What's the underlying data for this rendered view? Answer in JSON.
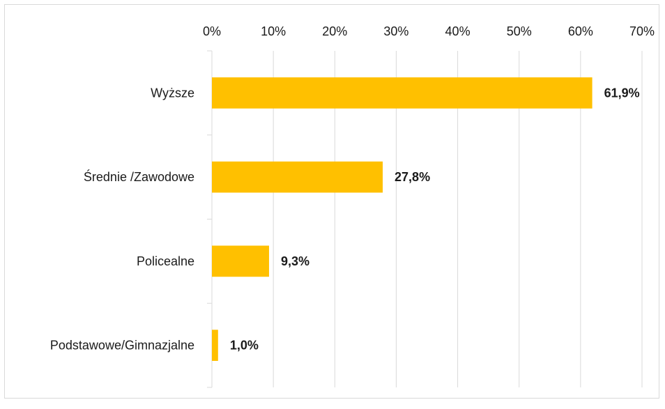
{
  "chart_data": {
    "type": "bar",
    "orientation": "horizontal",
    "categories": [
      "Wyższe",
      "Średnie /Zawodowe",
      "Policealne",
      "Podstawowe/Gimnazjalne"
    ],
    "values": [
      61.9,
      27.8,
      9.3,
      1.0
    ],
    "data_labels": [
      "61,9%",
      "27,8%",
      "9,3%",
      "1,0%"
    ],
    "x_ticks": [
      0,
      10,
      20,
      30,
      40,
      50,
      60,
      70
    ],
    "x_tick_labels": [
      "0%",
      "10%",
      "20%",
      "30%",
      "40%",
      "50%",
      "60%",
      "70%"
    ],
    "xlim": [
      0,
      70
    ],
    "x_axis_position": "top",
    "grid": true,
    "legend": "none",
    "title": "",
    "xlabel": "",
    "ylabel": "",
    "colors": {
      "bar": "#FFC000",
      "grid": "#d9d9d9",
      "axis": "#d9d9d9"
    }
  }
}
